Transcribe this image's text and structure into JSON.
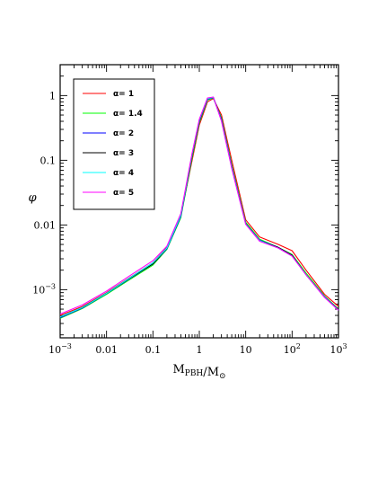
{
  "chart_data": {
    "type": "line",
    "xlabel": "M_PBH/M_⊙",
    "ylabel": "φ",
    "xscale": "log",
    "yscale": "log",
    "xlim": [
      0.001,
      1000
    ],
    "ylim": [
      0.00018,
      3
    ],
    "x_tick_labels": [
      "10^-3",
      "0.01",
      "0.1",
      "1",
      "10",
      "10^2",
      "10^3"
    ],
    "y_tick_labels": [
      "10^-3",
      "0.01",
      "0.1",
      "1"
    ],
    "legend_position": "top-left",
    "series": [
      {
        "name": "α= 1",
        "color": "#ff0000",
        "x": [
          0.001,
          0.003,
          0.01,
          0.03,
          0.1,
          0.2,
          0.4,
          0.7,
          1.0,
          1.5,
          2.0,
          3.0,
          5.0,
          10,
          20,
          50,
          100,
          200,
          500,
          1000
        ],
        "y": [
          0.0004,
          0.00055,
          0.0009,
          0.0015,
          0.0026,
          0.0045,
          0.014,
          0.1,
          0.35,
          0.8,
          0.9,
          0.5,
          0.1,
          0.012,
          0.0065,
          0.005,
          0.004,
          0.002,
          0.00085,
          0.00055
        ]
      },
      {
        "name": "α= 1.4",
        "color": "#00ff00",
        "x": [
          0.001,
          0.003,
          0.01,
          0.03,
          0.1,
          0.2,
          0.4,
          0.7,
          1.0,
          1.5,
          2.0,
          3.0,
          5.0,
          10,
          20,
          50,
          100,
          200,
          500,
          1000
        ],
        "y": [
          0.00036,
          0.00051,
          0.00085,
          0.0014,
          0.0024,
          0.0042,
          0.013,
          0.11,
          0.38,
          0.85,
          0.92,
          0.45,
          0.085,
          0.011,
          0.006,
          0.0045,
          0.0035,
          0.0018,
          0.0008,
          0.0005
        ]
      },
      {
        "name": "α= 2",
        "color": "#0000ff",
        "x": [
          0.001,
          0.003,
          0.01,
          0.03,
          0.1,
          0.2,
          0.4,
          0.7,
          1.0,
          1.5,
          2.0,
          3.0,
          5.0,
          10,
          20,
          50,
          100,
          200,
          500,
          1000
        ],
        "y": [
          0.00037,
          0.00052,
          0.00087,
          0.00145,
          0.0025,
          0.0043,
          0.0135,
          0.12,
          0.4,
          0.88,
          0.93,
          0.43,
          0.08,
          0.0105,
          0.0058,
          0.0045,
          0.0034,
          0.0017,
          0.00078,
          0.00049
        ]
      },
      {
        "name": "α= 3",
        "color": "#000000",
        "x": [
          0.001,
          0.003,
          0.01,
          0.03,
          0.1,
          0.2,
          0.4,
          0.7,
          1.0,
          1.5,
          2.0,
          3.0,
          5.0,
          10,
          20,
          50,
          100,
          200,
          500,
          1000
        ],
        "y": [
          0.00038,
          0.00053,
          0.00088,
          0.00147,
          0.0025,
          0.0044,
          0.0138,
          0.12,
          0.41,
          0.9,
          0.94,
          0.42,
          0.078,
          0.0104,
          0.0057,
          0.0045,
          0.0034,
          0.0017,
          0.00077,
          0.00049
        ]
      },
      {
        "name": "α= 4",
        "color": "#00ffff",
        "x": [
          0.001,
          0.003,
          0.01,
          0.03,
          0.1,
          0.2,
          0.4,
          0.7,
          1.0,
          1.5,
          2.0,
          3.0,
          5.0,
          10,
          20,
          50,
          100,
          200,
          500,
          1000
        ],
        "y": [
          0.00038,
          0.00053,
          0.00088,
          0.00148,
          0.0026,
          0.0044,
          0.014,
          0.125,
          0.42,
          0.9,
          0.94,
          0.41,
          0.077,
          0.0103,
          0.0057,
          0.0044,
          0.0033,
          0.0017,
          0.00077,
          0.00048
        ]
      },
      {
        "name": "α= 5",
        "color": "#ff00ff",
        "x": [
          0.001,
          0.003,
          0.01,
          0.03,
          0.1,
          0.2,
          0.4,
          0.7,
          1.0,
          1.5,
          2.0,
          3.0,
          5.0,
          10,
          20,
          50,
          100,
          200,
          500,
          1000
        ],
        "y": [
          0.00042,
          0.00058,
          0.00095,
          0.0016,
          0.0028,
          0.0047,
          0.015,
          0.13,
          0.43,
          0.92,
          0.95,
          0.4,
          0.075,
          0.0102,
          0.0056,
          0.0044,
          0.0033,
          0.0017,
          0.00076,
          0.00048
        ]
      }
    ]
  }
}
